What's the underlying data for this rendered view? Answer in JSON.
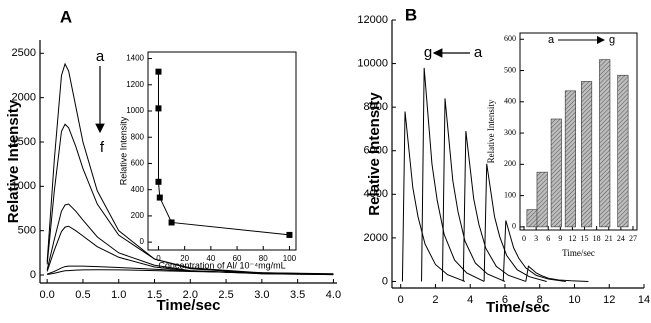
{
  "chart_data": [
    {
      "type": "line",
      "panel_label": "A",
      "xlabel": "Time/sec",
      "ylabel": "Relative Intensity",
      "annotations": [
        "a",
        "f"
      ],
      "x": [
        0,
        0.1,
        0.2,
        0.25,
        0.3,
        0.4,
        0.5,
        0.7,
        1.0,
        1.5,
        2.0,
        3.0,
        4.0
      ],
      "series": [
        {
          "color": "#000000",
          "values": [
            150,
            1300,
            2250,
            2380,
            2300,
            1900,
            1500,
            950,
            500,
            180,
            70,
            20,
            10
          ]
        },
        {
          "color": "#000000",
          "values": [
            120,
            950,
            1620,
            1700,
            1660,
            1450,
            1200,
            800,
            450,
            180,
            80,
            25,
            10
          ]
        },
        {
          "color": "#000000",
          "values": [
            60,
            400,
            720,
            790,
            800,
            720,
            620,
            430,
            250,
            110,
            50,
            15,
            5
          ]
        },
        {
          "color": "#000000",
          "values": [
            40,
            280,
            490,
            540,
            550,
            500,
            440,
            320,
            200,
            90,
            45,
            15,
            5
          ]
        },
        {
          "color": "#000000",
          "values": [
            10,
            40,
            80,
            95,
            100,
            100,
            100,
            95,
            85,
            65,
            45,
            20,
            10
          ]
        },
        {
          "color": "#000000",
          "values": [
            5,
            20,
            40,
            48,
            50,
            55,
            58,
            60,
            58,
            50,
            40,
            25,
            15
          ]
        }
      ],
      "xlim": [
        -0.1,
        4.05
      ],
      "ylim": [
        -90,
        2650
      ],
      "xticks": [
        {
          "value": 0,
          "label": "0.0"
        },
        {
          "value": 0.5,
          "label": "0.5"
        },
        {
          "value": 1,
          "label": "1.0"
        },
        {
          "value": 1.5,
          "label": "1.5"
        },
        {
          "value": 2,
          "label": "2.0"
        },
        {
          "value": 2.5,
          "label": "2.5"
        },
        {
          "value": 3,
          "label": "3.0"
        },
        {
          "value": 3.5,
          "label": "3.5"
        },
        {
          "value": 4,
          "label": "4.0"
        }
      ],
      "yticks": [
        0,
        500,
        1000,
        1500,
        2000,
        2500
      ],
      "grid": false
    },
    {
      "type": "line",
      "panel_label": "B",
      "xlabel": "Time/sec",
      "ylabel": "Relative Intensity",
      "annotations": [
        "g",
        "a"
      ],
      "series": [
        {
          "color": "#000000",
          "x": [
            0.1,
            0.25,
            0.5,
            0.7,
            1.0,
            1.4,
            2.0,
            2.7,
            3.7
          ],
          "values": [
            0,
            7800,
            5850,
            4290,
            2960,
            1720,
            780,
            310,
            0
          ]
        },
        {
          "color": "#000000",
          "x": [
            1.2,
            1.35,
            1.6,
            1.8,
            2.1,
            2.5,
            3.1,
            3.8,
            4.8
          ],
          "values": [
            0,
            9800,
            7350,
            5390,
            3720,
            2160,
            980,
            390,
            0
          ]
        },
        {
          "color": "#000000",
          "x": [
            2.4,
            2.55,
            2.8,
            3.0,
            3.3,
            3.7,
            4.3,
            5.0,
            6.0
          ],
          "values": [
            0,
            8400,
            6300,
            4620,
            3190,
            1850,
            840,
            340,
            0
          ]
        },
        {
          "color": "#000000",
          "x": [
            3.6,
            3.75,
            4.0,
            4.2,
            4.5,
            4.9,
            5.5,
            6.2,
            7.2
          ],
          "values": [
            0,
            6900,
            5180,
            3800,
            2620,
            1520,
            690,
            280,
            0
          ]
        },
        {
          "color": "#000000",
          "x": [
            4.8,
            4.95,
            5.2,
            5.4,
            5.7,
            6.1,
            6.7,
            7.4,
            8.4
          ],
          "values": [
            0,
            5400,
            4050,
            2970,
            2050,
            1190,
            540,
            220,
            0
          ]
        },
        {
          "color": "#000000",
          "x": [
            5.9,
            6.05,
            6.3,
            6.5,
            6.8,
            7.2,
            7.8,
            8.5,
            9.5
          ],
          "values": [
            0,
            2800,
            2100,
            1540,
            1060,
            620,
            280,
            110,
            0
          ]
        },
        {
          "color": "#000000",
          "x": [
            7.2,
            7.35,
            7.6,
            7.8,
            8.1,
            8.5,
            9.1,
            9.8,
            10.8
          ],
          "values": [
            0,
            700,
            530,
            390,
            270,
            150,
            70,
            30,
            0
          ]
        }
      ],
      "xlim": [
        -0.5,
        14
      ],
      "ylim": [
        -300,
        12000
      ],
      "xticks": [
        0,
        2,
        4,
        6,
        8,
        10,
        12,
        14
      ],
      "yticks": [
        0,
        2000,
        4000,
        6000,
        8000,
        10000,
        12000
      ],
      "grid": false
    },
    {
      "type": "scatter",
      "xlabel": "Concentration of Al/ 10⁻⁴mg/mL",
      "ylabel": "Relative Intensity",
      "connect": true,
      "color": "#000000",
      "x": [
        0,
        0,
        0,
        1,
        10,
        100
      ],
      "values": [
        1300,
        1020,
        460,
        340,
        150,
        55
      ],
      "xlim": [
        -8,
        105
      ],
      "ylim": [
        -60,
        1450
      ],
      "xticks": [
        0,
        20,
        40,
        60,
        80,
        100
      ],
      "yticks": [
        0,
        200,
        400,
        600,
        800,
        1000,
        1200,
        1400
      ],
      "grid": false
    },
    {
      "type": "bar",
      "xlabel": "Time/sec",
      "ylabel": "Relative Intensity",
      "annotations": [
        "a",
        "g"
      ],
      "color": "#9a9a9a",
      "x": [
        2,
        4.5,
        8,
        11.5,
        15.5,
        20,
        24.5
      ],
      "values": [
        55,
        175,
        345,
        435,
        465,
        535,
        485
      ],
      "xlim": [
        -1,
        28
      ],
      "ylim": [
        -10,
        620
      ],
      "xticks": [
        0,
        3,
        6,
        9,
        12,
        15,
        18,
        21,
        24,
        27
      ],
      "yticks": [
        0,
        100,
        200,
        300,
        400,
        500,
        600
      ],
      "grid": false
    }
  ]
}
